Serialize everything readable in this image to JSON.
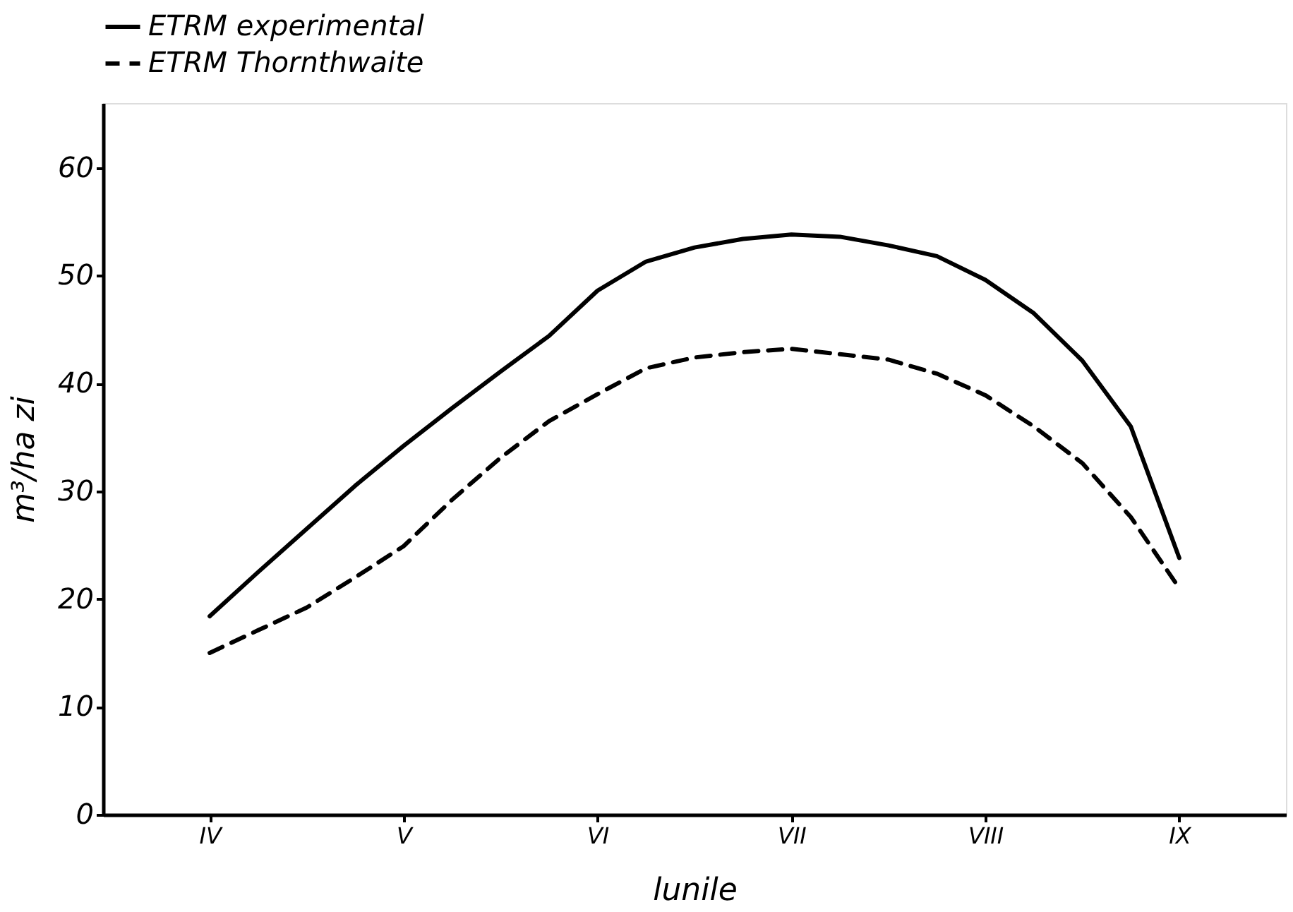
{
  "chart_data": {
    "type": "line",
    "xlabel": "lunile",
    "ylabel": "m³/ha zi",
    "categories": [
      null,
      null,
      "IV",
      null,
      null,
      null,
      "V",
      null,
      null,
      null,
      "VI",
      null,
      null,
      null,
      "VII",
      null,
      null,
      null,
      "VIII",
      null,
      null,
      null,
      "IX",
      null,
      null
    ],
    "ylim": [
      0,
      66
    ],
    "yticks": [
      0,
      10,
      20,
      30,
      40,
      50,
      60
    ],
    "grid": false,
    "legend": "top",
    "marker": "none",
    "series": [
      {
        "name": "ETRM experimental",
        "color": "#000000",
        "line_style": "solid",
        "values": [
          null,
          null,
          18.4,
          22.5,
          26.5,
          30.5,
          34.2,
          37.7,
          41.1,
          44.4,
          48.6,
          51.3,
          52.6,
          53.4,
          53.8,
          53.6,
          52.8,
          51.8,
          49.6,
          46.5,
          42.1,
          36.0,
          23.8,
          null,
          null
        ]
      },
      {
        "name": "ETRM Thornthwaite",
        "color": "#000000",
        "line_style": "dashed",
        "values": [
          null,
          null,
          15.0,
          17.1,
          19.2,
          22.0,
          24.9,
          29.2,
          33.1,
          36.5,
          39.0,
          41.4,
          42.4,
          42.9,
          43.2,
          42.7,
          42.2,
          40.9,
          38.9,
          36.0,
          32.6,
          27.6,
          21.0,
          null,
          null
        ]
      }
    ]
  }
}
